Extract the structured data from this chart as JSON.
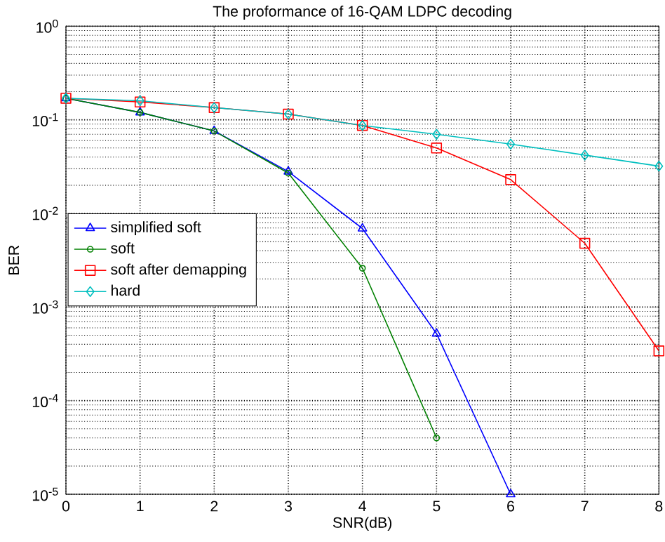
{
  "chart_data": {
    "type": "line",
    "title": "The proformance of 16-QAM LDPC decoding",
    "xlabel": "SNR(dB)",
    "ylabel": "BER",
    "log": "y",
    "grid": true,
    "legend": "left",
    "line_style": "solid",
    "xlim": [
      0,
      8
    ],
    "xticks": [
      0,
      1,
      2,
      3,
      4,
      5,
      6,
      7,
      8
    ],
    "ylim": [
      1e-05,
      1
    ],
    "yticks": [
      {
        "value": 1e-05,
        "label": "10$^{-5}$"
      },
      {
        "value": 0.0001,
        "label": "10$^{-4}$"
      },
      {
        "value": 0.001,
        "label": "10$^{-3}$"
      },
      {
        "value": 0.01,
        "label": "10$^{-2}$"
      },
      {
        "value": 0.1,
        "label": "10$^{-1}$"
      },
      {
        "value": 1,
        "label": "10$^{0}$"
      }
    ],
    "x": [
      0,
      1,
      2,
      3,
      4,
      5,
      6,
      7,
      8
    ],
    "series": [
      {
        "name": "simplified soft",
        "color": "#0000ff",
        "marker": "triangle",
        "values": [
          0.17,
          0.12,
          0.076,
          0.028,
          0.0069,
          0.00052,
          1e-05,
          null,
          null
        ]
      },
      {
        "name": "soft",
        "color": "#008000",
        "marker": "circle",
        "values": [
          0.17,
          0.12,
          0.076,
          0.027,
          0.0026,
          4e-05,
          null,
          null,
          null
        ]
      },
      {
        "name": "soft after demapping",
        "color": "#ff0000",
        "marker": "square",
        "values": [
          0.17,
          0.155,
          0.135,
          0.115,
          0.087,
          0.05,
          0.023,
          0.0048,
          0.00034
        ]
      },
      {
        "name": "hard",
        "color": "#00bfbf",
        "marker": "diamond",
        "values": [
          0.17,
          0.16,
          0.135,
          0.115,
          0.087,
          0.07,
          0.055,
          0.042,
          0.032
        ]
      }
    ]
  }
}
